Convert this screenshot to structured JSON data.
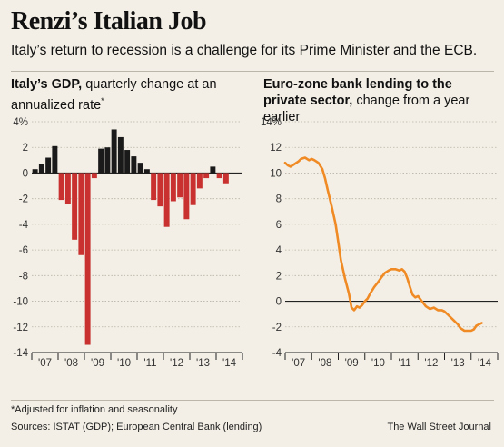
{
  "header": {
    "title": "Renzi’s Italian Job",
    "subtitle": "Italy’s return to recession is a challenge for its Prime Minister and the ECB."
  },
  "footer": {
    "footnote": "*Adjusted for inflation and seasonality",
    "sources": "Sources: ISTAT (GDP); European Central Bank (lending)",
    "credit": "The Wall Street Journal"
  },
  "chart_data": [
    {
      "type": "bar",
      "title_bold": "Italy’s GDP,",
      "title_rest": " quarterly change at an annualized rate",
      "title_mark": "*",
      "xlabel": "",
      "ylabel": "",
      "ylim": [
        -14,
        4
      ],
      "y_ticks": [
        4,
        2,
        0,
        -2,
        -4,
        -6,
        -8,
        -10,
        -12,
        -14
      ],
      "y_tick_labels": [
        "4%",
        "2",
        "0",
        "-2",
        "-4",
        "-6",
        "-8",
        "-10",
        "-12",
        "-14"
      ],
      "x_ticks": [
        "'07",
        "'08",
        "'09",
        "'10",
        "'11",
        "'12",
        "'13",
        "'14"
      ],
      "grid": true,
      "colors": {
        "positive": "#1a1a1a",
        "negative": "#c8312f"
      },
      "categories": [
        "2007Q1",
        "2007Q2",
        "2007Q3",
        "2007Q4",
        "2008Q1",
        "2008Q2",
        "2008Q3",
        "2008Q4",
        "2009Q1",
        "2009Q2",
        "2009Q3",
        "2009Q4",
        "2010Q1",
        "2010Q2",
        "2010Q3",
        "2010Q4",
        "2011Q1",
        "2011Q2",
        "2011Q3",
        "2011Q4",
        "2012Q1",
        "2012Q2",
        "2012Q3",
        "2012Q4",
        "2013Q1",
        "2013Q2",
        "2013Q3",
        "2013Q4",
        "2014Q1",
        "2014Q2"
      ],
      "values": [
        0.3,
        0.7,
        1.2,
        2.1,
        -2.1,
        -2.4,
        -5.2,
        -6.4,
        -13.4,
        -0.4,
        1.9,
        2.0,
        3.4,
        2.8,
        1.8,
        1.3,
        0.8,
        0.3,
        -2.1,
        -2.6,
        -4.2,
        -2.2,
        -1.9,
        -3.6,
        -2.5,
        -1.2,
        -0.4,
        0.5,
        -0.4,
        -0.8
      ]
    },
    {
      "type": "line",
      "title_bold": "Euro-zone bank lending to the private sector,",
      "title_rest": " change from a year earlier",
      "xlabel": "",
      "ylabel": "",
      "ylim": [
        -4,
        14
      ],
      "y_ticks": [
        14,
        12,
        10,
        8,
        6,
        4,
        2,
        0,
        -2,
        -4
      ],
      "y_tick_labels": [
        "14%",
        "12",
        "10",
        "8",
        "6",
        "4",
        "2",
        "0",
        "-2",
        "-4"
      ],
      "x_ticks": [
        "'07",
        "'08",
        "'09",
        "'10",
        "'11",
        "'12",
        "'13",
        "'14"
      ],
      "grid": true,
      "colors": {
        "line": "#f08a24"
      },
      "series": [
        {
          "x": [
            2007.0,
            2007.1,
            2007.2,
            2007.35,
            2007.5,
            2007.6,
            2007.75,
            2007.9,
            2008.0,
            2008.1,
            2008.25,
            2008.4,
            2008.5,
            2008.6,
            2008.75,
            2008.9,
            2009.0,
            2009.1,
            2009.25,
            2009.4,
            2009.5,
            2009.6,
            2009.7,
            2009.8,
            2009.9,
            2010.0,
            2010.1,
            2010.2,
            2010.35,
            2010.5,
            2010.6,
            2010.75,
            2010.9,
            2011.0,
            2011.15,
            2011.3,
            2011.4,
            2011.5,
            2011.6,
            2011.7,
            2011.8,
            2011.9,
            2012.0,
            2012.15,
            2012.3,
            2012.45,
            2012.6,
            2012.75,
            2012.9,
            2013.0,
            2013.2,
            2013.35,
            2013.5,
            2013.6,
            2013.75,
            2013.9,
            2014.0,
            2014.1,
            2014.2,
            2014.3,
            2014.4
          ],
          "y": [
            10.8,
            10.6,
            10.5,
            10.7,
            10.9,
            11.1,
            11.2,
            11.0,
            11.1,
            11.0,
            10.8,
            10.3,
            9.6,
            8.7,
            7.4,
            6.0,
            4.6,
            3.2,
            1.8,
            0.6,
            -0.5,
            -0.7,
            -0.4,
            -0.5,
            -0.3,
            0.0,
            0.2,
            0.6,
            1.1,
            1.5,
            1.8,
            2.2,
            2.4,
            2.5,
            2.5,
            2.4,
            2.5,
            2.3,
            1.8,
            1.1,
            0.5,
            0.3,
            0.4,
            0.0,
            -0.4,
            -0.6,
            -0.5,
            -0.7,
            -0.7,
            -0.8,
            -1.2,
            -1.5,
            -1.8,
            -2.1,
            -2.3,
            -2.3,
            -2.3,
            -2.2,
            -1.9,
            -1.8,
            -1.7
          ]
        }
      ]
    }
  ]
}
